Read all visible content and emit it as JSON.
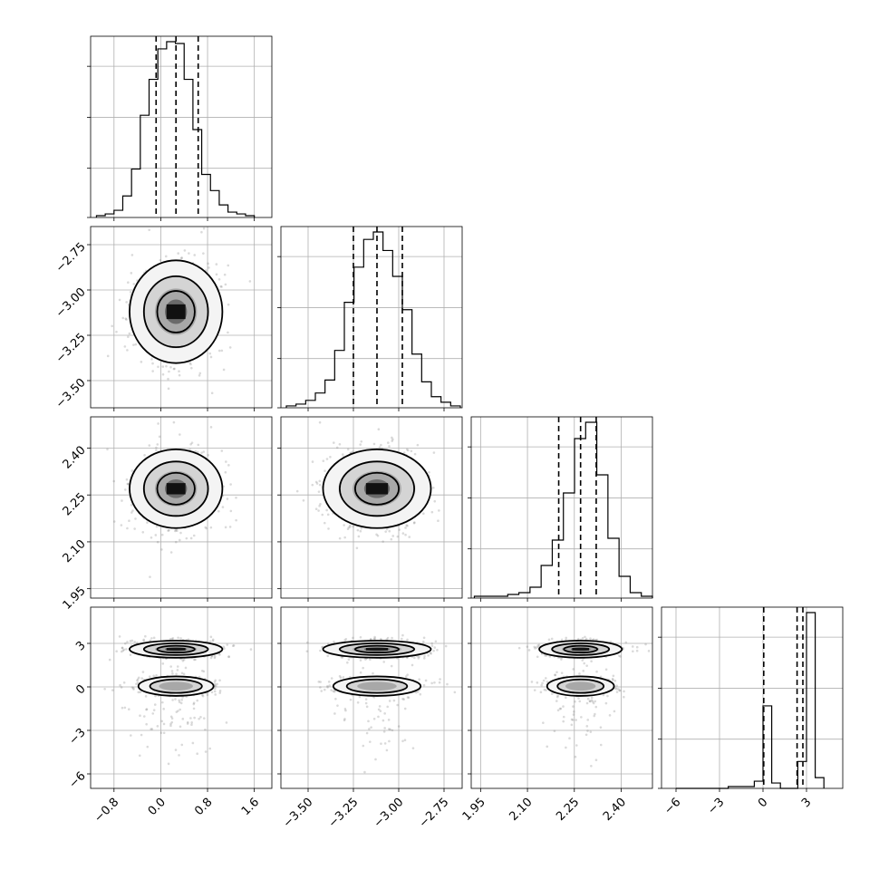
{
  "chart_data": {
    "type": "corner",
    "parameters": [
      {
        "name": "",
        "range": [
          -1.2,
          1.9
        ],
        "ticks": [
          -0.8,
          0.0,
          0.8,
          1.6
        ],
        "tick_labels": [
          "−0.8",
          "0.0",
          "0.8",
          "1.6"
        ],
        "quantiles": [
          -0.08,
          0.26,
          0.64
        ],
        "histogram": [
          1,
          2,
          4,
          12,
          27,
          57,
          77,
          94,
          98,
          97,
          77,
          49,
          24,
          15,
          7,
          3,
          2,
          1
        ],
        "hist_range": [
          -1.1,
          1.6
        ]
      },
      {
        "name": "",
        "range": [
          -3.65,
          -2.65
        ],
        "ticks": [
          -3.5,
          -3.25,
          -3.0,
          -2.75
        ],
        "tick_labels": [
          "−3.50",
          "−3.25",
          "−3.00",
          "−2.75"
        ],
        "quantiles": [
          -3.25,
          -3.12,
          -2.98
        ],
        "histogram": [
          1,
          2,
          4,
          8,
          15,
          31,
          57,
          76,
          91,
          95,
          85,
          71,
          53,
          29,
          14,
          6,
          3,
          1
        ],
        "hist_range": [
          -3.62,
          -2.66
        ]
      },
      {
        "name": "",
        "range": [
          1.92,
          2.5
        ],
        "ticks": [
          1.95,
          2.1,
          2.25,
          2.4
        ],
        "tick_labels": [
          "1.95",
          "2.10",
          "2.25",
          "2.40"
        ],
        "quantiles": [
          2.2,
          2.27,
          2.32
        ],
        "histogram": [
          1,
          1,
          1,
          2,
          3,
          6,
          18,
          32,
          58,
          88,
          97,
          68,
          33,
          12,
          3,
          1
        ],
        "hist_range": [
          1.93,
          2.5
        ]
      },
      {
        "name": "",
        "range": [
          -7.0,
          5.5
        ],
        "ticks": [
          -6,
          -3,
          0,
          3
        ],
        "tick_labels": [
          "−6",
          "−3",
          "0",
          "3"
        ],
        "quantiles": [
          0.05,
          2.35,
          2.75
        ],
        "histogram": [
          0,
          0,
          0,
          0,
          0,
          0,
          1,
          1,
          1,
          4,
          46,
          3,
          0,
          0,
          15,
          98,
          6
        ],
        "hist_range": [
          -6.0,
          4.2
        ]
      }
    ],
    "contour_levels": 3,
    "grid": true,
    "scatter_points": true
  }
}
